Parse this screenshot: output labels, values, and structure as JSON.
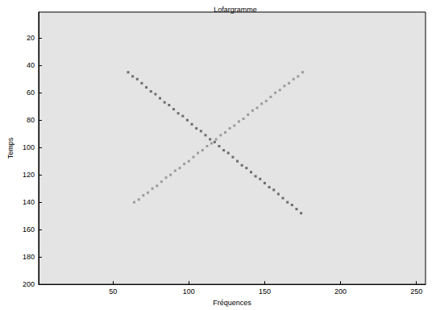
{
  "chart_data": {
    "type": "scatter",
    "title": "Lofargramme",
    "xlabel": "Fréquences",
    "ylabel": "Temps",
    "xlim": [
      1,
      256
    ],
    "xticks": [
      50,
      100,
      150,
      200,
      250
    ],
    "ylim": [
      200,
      1
    ],
    "yticks": [
      20,
      40,
      60,
      80,
      100,
      120,
      140,
      160,
      180,
      200
    ],
    "grid": false,
    "series": [
      {
        "color": "#4d4d4d",
        "marker": "square",
        "x": [
          60,
          63,
          66,
          69,
          72,
          75,
          78,
          81,
          84,
          87,
          90,
          93,
          96,
          99,
          102,
          105,
          108,
          111,
          114,
          117,
          120,
          123,
          126,
          129,
          132,
          135,
          138,
          141,
          144,
          147,
          150,
          153,
          156,
          159,
          162,
          165,
          168,
          171,
          174
        ],
        "values": [
          45,
          48,
          50,
          53,
          56,
          59,
          61,
          64,
          67,
          69,
          72,
          75,
          77,
          80,
          83,
          86,
          88,
          91,
          94,
          96,
          99,
          102,
          104,
          107,
          110,
          113,
          115,
          118,
          121,
          123,
          126,
          129,
          131,
          134,
          137,
          140,
          142,
          145,
          148
        ]
      },
      {
        "color": "#8a8a8a",
        "marker": "square",
        "x": [
          64,
          67,
          70,
          73,
          76,
          79,
          82,
          85,
          88,
          91,
          94,
          97,
          100,
          103,
          106,
          109,
          112,
          115,
          118,
          121,
          124,
          127,
          130,
          133,
          136,
          139,
          142,
          145,
          148,
          151,
          154,
          157,
          160,
          163,
          166,
          169,
          172,
          175
        ],
        "values": [
          140,
          138,
          135,
          133,
          130,
          128,
          125,
          122,
          120,
          117,
          115,
          112,
          110,
          107,
          104,
          102,
          99,
          97,
          94,
          91,
          89,
          86,
          84,
          81,
          79,
          76,
          73,
          71,
          68,
          66,
          63,
          60,
          58,
          55,
          53,
          50,
          48,
          45
        ]
      }
    ]
  }
}
